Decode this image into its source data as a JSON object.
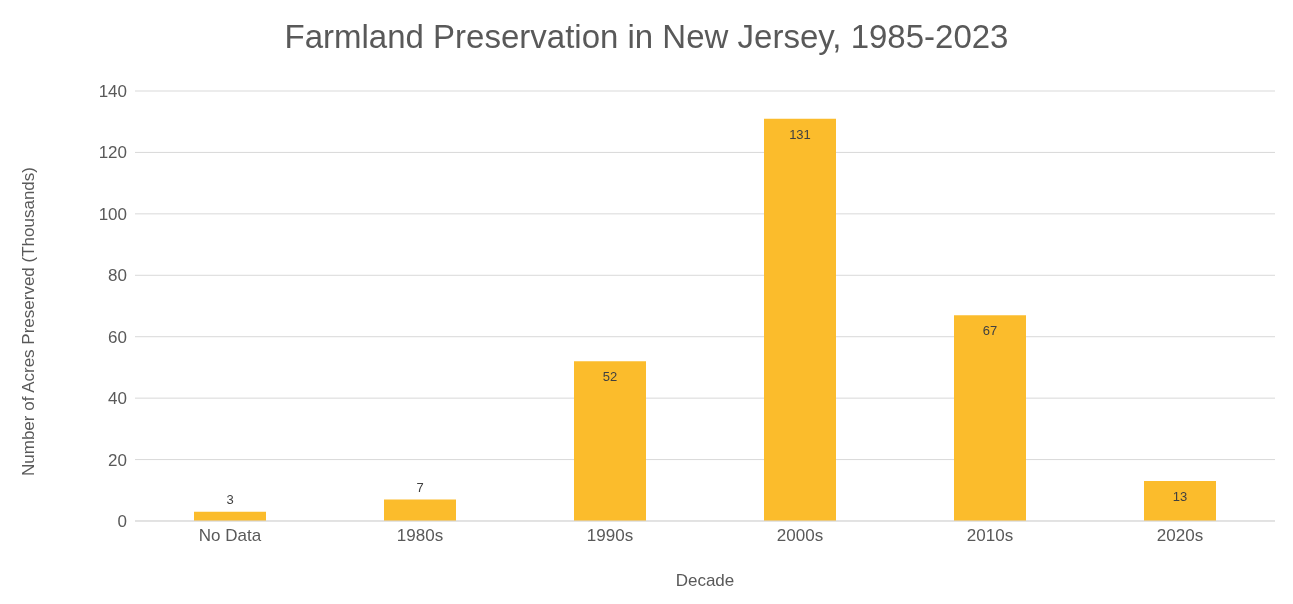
{
  "chart_data": {
    "type": "bar",
    "title": "Farmland Preservation in New Jersey, 1985-2023",
    "xlabel": "Decade",
    "ylabel": "Number of Acres Preserved (Thousands)",
    "categories": [
      "No Data",
      "1980s",
      "1990s",
      "2000s",
      "2010s",
      "2020s"
    ],
    "values": [
      3,
      7,
      52,
      131,
      67,
      13
    ],
    "color": "#fbbc2c",
    "ylim": [
      0,
      140
    ],
    "yticks": [
      0,
      20,
      40,
      60,
      80,
      100,
      120,
      140
    ],
    "grid": "y",
    "legend": false,
    "data_labels": true
  }
}
